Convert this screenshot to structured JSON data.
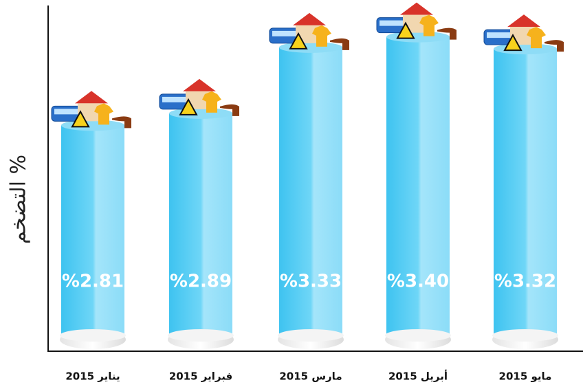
{
  "chart_data": {
    "type": "bar",
    "y_label": "التضخم %",
    "categories": [
      "يناير 2015",
      "فبراير 2015",
      "مارس 2015",
      "أبريل 2015",
      "مايو 2015"
    ],
    "values": [
      2.81,
      2.89,
      3.33,
      3.4,
      3.32
    ],
    "value_labels": [
      "%2.81",
      "%2.89",
      "%3.33",
      "%3.40",
      "%3.32"
    ],
    "color": "#4fcaf3",
    "ylim": [
      1.4,
      3.6
    ]
  }
}
